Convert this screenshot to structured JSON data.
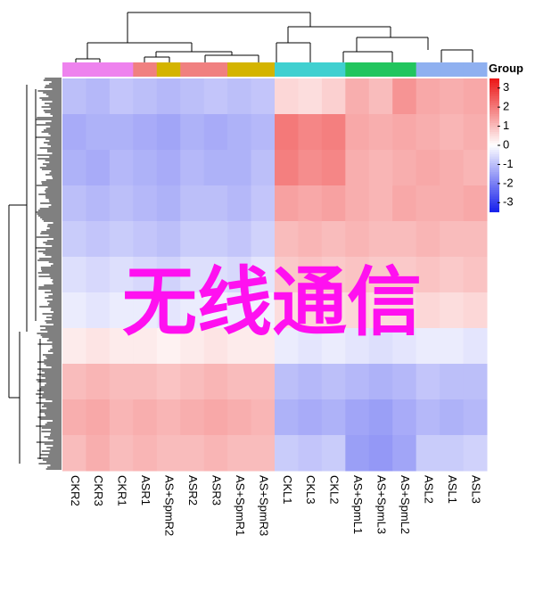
{
  "chart_data": {
    "type": "heatmap",
    "columns": [
      "CKR2",
      "CKR3",
      "CKR1",
      "ASR1",
      "AS+SpmR2",
      "ASR2",
      "ASR3",
      "AS+SpmR1",
      "AS+SpmR3",
      "CKL1",
      "CKL3",
      "CKL2",
      "AS+SpmL1",
      "AS+SpmL3",
      "AS+SpmL2",
      "ASL2",
      "ASL1",
      "ASL3"
    ],
    "group_colors": [
      "#ee82ee",
      "#ee82ee",
      "#ee82ee",
      "#f08080",
      "#d4b400",
      "#f08080",
      "#f08080",
      "#d4b400",
      "#d4b400",
      "#40d0d0",
      "#40d0d0",
      "#40d0d0",
      "#22c55e",
      "#22c55e",
      "#22c55e",
      "#8fb0f0",
      "#8fb0f0",
      "#8fb0f0"
    ],
    "legend_title": "Group",
    "rows": [
      [
        -1.0,
        -1.1,
        -0.9,
        -1.0,
        -1.1,
        -1.0,
        -0.9,
        -1.0,
        -0.9,
        0.6,
        0.5,
        0.7,
        1.2,
        1.0,
        1.6,
        1.3,
        1.2,
        1.3
      ],
      [
        -1.3,
        -1.2,
        -1.2,
        -1.3,
        -1.4,
        -1.2,
        -1.3,
        -1.2,
        -1.1,
        2.0,
        1.8,
        1.9,
        1.3,
        1.2,
        1.3,
        1.2,
        1.1,
        1.2
      ],
      [
        -1.2,
        -1.3,
        -1.1,
        -1.2,
        -1.3,
        -1.1,
        -1.2,
        -1.2,
        -1.0,
        1.9,
        1.7,
        1.8,
        1.2,
        1.1,
        1.2,
        1.3,
        1.2,
        1.1
      ],
      [
        -1.0,
        -1.1,
        -1.0,
        -1.1,
        -1.2,
        -1.0,
        -1.0,
        -1.1,
        -0.9,
        1.4,
        1.3,
        1.4,
        1.2,
        1.1,
        1.3,
        1.2,
        1.2,
        1.3
      ],
      [
        -0.8,
        -0.9,
        -0.8,
        -0.9,
        -1.0,
        -0.8,
        -0.8,
        -0.9,
        -0.7,
        1.0,
        1.1,
        1.0,
        1.1,
        1.0,
        1.0,
        1.1,
        1.0,
        1.0
      ],
      [
        -0.5,
        -0.6,
        -0.5,
        -0.6,
        -0.7,
        -0.5,
        -0.5,
        -0.6,
        -0.4,
        0.8,
        0.9,
        0.8,
        0.9,
        0.8,
        0.8,
        0.9,
        0.8,
        0.9
      ],
      [
        -0.3,
        -0.4,
        -0.3,
        -0.3,
        -0.4,
        -0.3,
        -0.2,
        -0.3,
        -0.2,
        0.5,
        0.6,
        0.5,
        0.6,
        0.5,
        0.5,
        0.6,
        0.5,
        0.6
      ],
      [
        0.3,
        0.4,
        0.3,
        0.3,
        0.2,
        0.3,
        0.4,
        0.3,
        0.3,
        -0.3,
        -0.4,
        -0.3,
        -0.4,
        -0.5,
        -0.4,
        -0.3,
        -0.3,
        -0.4
      ],
      [
        1.0,
        1.1,
        1.0,
        1.0,
        0.9,
        1.0,
        1.1,
        1.0,
        1.0,
        -1.0,
        -1.1,
        -1.0,
        -1.1,
        -1.2,
        -1.1,
        -0.9,
        -1.0,
        -1.0
      ],
      [
        1.2,
        1.3,
        1.1,
        1.2,
        1.1,
        1.2,
        1.3,
        1.2,
        1.1,
        -1.2,
        -1.3,
        -1.2,
        -1.4,
        -1.5,
        -1.3,
        -1.1,
        -1.2,
        -1.1
      ],
      [
        1.0,
        1.2,
        1.0,
        1.1,
        1.0,
        1.0,
        1.1,
        1.0,
        1.0,
        -0.8,
        -0.9,
        -0.8,
        -1.5,
        -1.6,
        -1.4,
        -0.8,
        -0.8,
        -0.7
      ]
    ],
    "clim": [
      -3.5,
      3.5
    ],
    "cticks": [
      3,
      2,
      1,
      0,
      -1,
      -2,
      -3
    ],
    "annotation": "无线通信"
  }
}
